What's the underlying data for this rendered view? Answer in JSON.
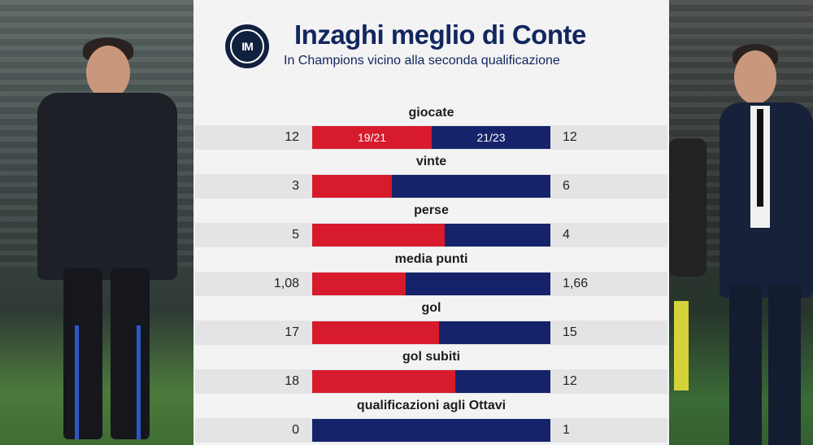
{
  "header": {
    "title": "Inzaghi meglio di Conte",
    "subtitle": "In Champions vicino alla seconda qualificazione"
  },
  "periods": {
    "left": "19/21",
    "right": "21/23"
  },
  "colors": {
    "red": "#d71a2c",
    "blue": "#15236a",
    "title": "#12265f"
  },
  "stats": [
    {
      "label": "giocate",
      "left": "12",
      "right": "12",
      "left_value": 12,
      "right_value": 12
    },
    {
      "label": "vinte",
      "left": "3",
      "right": "6",
      "left_value": 3,
      "right_value": 6
    },
    {
      "label": "perse",
      "left": "5",
      "right": "4",
      "left_value": 5,
      "right_value": 4
    },
    {
      "label": "media punti",
      "left": "1,08",
      "right": "1,66",
      "left_value": 1.08,
      "right_value": 1.66
    },
    {
      "label": "gol",
      "left": "17",
      "right": "15",
      "left_value": 17,
      "right_value": 15
    },
    {
      "label": "gol subiti",
      "left": "18",
      "right": "12",
      "left_value": 18,
      "right_value": 12
    },
    {
      "label": "qualificazioni agli Ottavi",
      "left": "0",
      "right": "1",
      "left_value": 0,
      "right_value": 1
    }
  ]
}
